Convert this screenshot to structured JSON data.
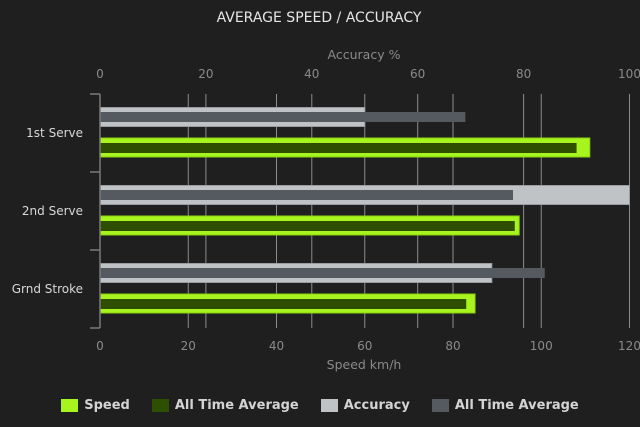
{
  "chart_data": {
    "type": "bar",
    "orientation": "horizontal",
    "title": "AVERAGE SPEED / ACCURACY",
    "categories": [
      "1st Serve",
      "2nd Serve",
      "Grnd Stroke"
    ],
    "bottom_axis": {
      "label": "Speed km/h",
      "range": [
        0,
        120
      ],
      "ticks": [
        0,
        20,
        40,
        60,
        80,
        100,
        120
      ]
    },
    "top_axis": {
      "label": "Accuracy %",
      "range": [
        0,
        100
      ],
      "ticks": [
        0,
        20,
        40,
        60,
        80,
        100
      ]
    },
    "grid": true,
    "legend_position": "bottom",
    "series": [
      {
        "name": "Speed",
        "axis": "bottom",
        "values": [
          111,
          95,
          85
        ],
        "color": "#a8f41e"
      },
      {
        "name": "All Time Average",
        "axis": "bottom",
        "values": [
          108,
          94,
          83
        ],
        "color": "#2f4f00"
      },
      {
        "name": "Accuracy",
        "axis": "top",
        "values": [
          50,
          100,
          74
        ],
        "color": "#c0c3c6"
      },
      {
        "name": "All Time Average",
        "axis": "top",
        "values": [
          69,
          78,
          84
        ],
        "color": "#555a60"
      }
    ]
  }
}
